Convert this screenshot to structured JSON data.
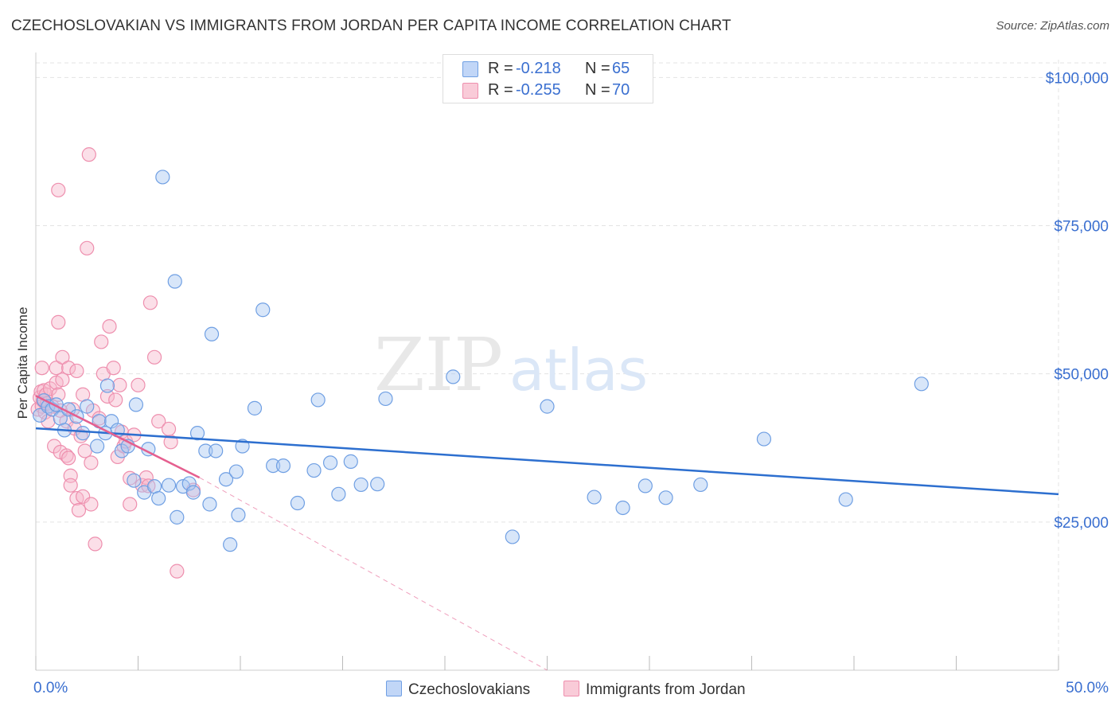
{
  "title": "CZECHOSLOVAKIAN VS IMMIGRANTS FROM JORDAN PER CAPITA INCOME CORRELATION CHART",
  "source": "Source: ZipAtlas.com",
  "watermark": {
    "zip": "ZIP",
    "atlas": "atlas"
  },
  "stats": {
    "rows": [
      {
        "r_label": "R =",
        "r_value": "-0.218",
        "n_label": "N =",
        "n_value": "65"
      },
      {
        "r_label": "R =",
        "r_value": "-0.255",
        "n_label": "N =",
        "n_value": "70"
      }
    ]
  },
  "legend": {
    "items": [
      {
        "label": "Czechoslovakians"
      },
      {
        "label": "Immigrants from Jordan"
      }
    ]
  },
  "colors": {
    "blue_fill": "#a9c7f2",
    "blue_stroke": "#6f9fe3",
    "blue_line": "#2d6fcf",
    "pink_fill": "#f7b9cc",
    "pink_stroke": "#ee8fae",
    "pink_line": "#e55f8f",
    "tick_label": "#3a6fd0",
    "grid": "#e3e3e3"
  },
  "chart_data": {
    "type": "scatter",
    "title": "CZECHOSLOVAKIAN VS IMMIGRANTS FROM JORDAN PER CAPITA INCOME CORRELATION CHART",
    "xlabel": "",
    "ylabel": "Per Capita Income",
    "xlim": [
      0,
      50
    ],
    "ylim": [
      0,
      103000
    ],
    "x_tick_labels": [
      {
        "value": 0,
        "label": "0.0%"
      },
      {
        "value": 50,
        "label": "50.0%"
      }
    ],
    "y_ticks": [
      {
        "value": 25000,
        "label": "$25,000"
      },
      {
        "value": 50000,
        "label": "$50,000"
      },
      {
        "value": 75000,
        "label": "$75,000"
      },
      {
        "value": 100000,
        "label": "$100,000"
      }
    ],
    "x_minor_ticks": [
      0,
      5,
      10,
      15,
      20,
      25,
      30,
      35,
      40,
      45,
      50
    ],
    "series": [
      {
        "name": "Czechoslovakians",
        "R": -0.218,
        "N": 65,
        "trend": {
          "x": [
            0,
            50
          ],
          "y": [
            40800,
            29700
          ]
        },
        "points": [
          {
            "x": 0.2,
            "y": 43000
          },
          {
            "x": 0.4,
            "y": 45500
          },
          {
            "x": 0.6,
            "y": 44500
          },
          {
            "x": 0.8,
            "y": 44000
          },
          {
            "x": 1.0,
            "y": 44800
          },
          {
            "x": 1.2,
            "y": 42500
          },
          {
            "x": 1.4,
            "y": 40500
          },
          {
            "x": 1.6,
            "y": 44000
          },
          {
            "x": 2.0,
            "y": 42800
          },
          {
            "x": 2.3,
            "y": 40000
          },
          {
            "x": 2.5,
            "y": 44500
          },
          {
            "x": 3.0,
            "y": 37800
          },
          {
            "x": 3.1,
            "y": 42000
          },
          {
            "x": 3.4,
            "y": 40000
          },
          {
            "x": 3.5,
            "y": 48000
          },
          {
            "x": 3.7,
            "y": 42000
          },
          {
            "x": 4.0,
            "y": 40500
          },
          {
            "x": 4.2,
            "y": 37000
          },
          {
            "x": 4.5,
            "y": 37800
          },
          {
            "x": 4.8,
            "y": 32000
          },
          {
            "x": 4.9,
            "y": 44800
          },
          {
            "x": 5.3,
            "y": 30000
          },
          {
            "x": 5.5,
            "y": 37300
          },
          {
            "x": 5.8,
            "y": 31000
          },
          {
            "x": 6.0,
            "y": 29000
          },
          {
            "x": 6.2,
            "y": 83200
          },
          {
            "x": 6.5,
            "y": 31200
          },
          {
            "x": 6.8,
            "y": 65600
          },
          {
            "x": 6.9,
            "y": 25800
          },
          {
            "x": 7.2,
            "y": 31000
          },
          {
            "x": 7.5,
            "y": 31500
          },
          {
            "x": 7.7,
            "y": 30000
          },
          {
            "x": 7.9,
            "y": 40000
          },
          {
            "x": 8.3,
            "y": 37000
          },
          {
            "x": 8.6,
            "y": 56700
          },
          {
            "x": 8.5,
            "y": 28000
          },
          {
            "x": 8.8,
            "y": 37000
          },
          {
            "x": 9.3,
            "y": 32200
          },
          {
            "x": 9.5,
            "y": 21200
          },
          {
            "x": 9.8,
            "y": 33500
          },
          {
            "x": 9.9,
            "y": 26200
          },
          {
            "x": 10.1,
            "y": 37800
          },
          {
            "x": 10.7,
            "y": 44200
          },
          {
            "x": 11.1,
            "y": 60800
          },
          {
            "x": 11.6,
            "y": 34500
          },
          {
            "x": 12.1,
            "y": 34500
          },
          {
            "x": 12.8,
            "y": 28200
          },
          {
            "x": 13.6,
            "y": 33700
          },
          {
            "x": 13.8,
            "y": 45600
          },
          {
            "x": 14.4,
            "y": 35000
          },
          {
            "x": 14.8,
            "y": 29700
          },
          {
            "x": 15.4,
            "y": 35200
          },
          {
            "x": 15.9,
            "y": 31300
          },
          {
            "x": 16.7,
            "y": 31400
          },
          {
            "x": 17.1,
            "y": 45800
          },
          {
            "x": 20.4,
            "y": 49500
          },
          {
            "x": 23.3,
            "y": 22500
          },
          {
            "x": 25.0,
            "y": 44500
          },
          {
            "x": 27.3,
            "y": 29200
          },
          {
            "x": 28.7,
            "y": 27400
          },
          {
            "x": 29.8,
            "y": 31100
          },
          {
            "x": 30.8,
            "y": 29100
          },
          {
            "x": 32.5,
            "y": 31300
          },
          {
            "x": 35.6,
            "y": 39000
          },
          {
            "x": 43.3,
            "y": 48300
          },
          {
            "x": 39.6,
            "y": 28800
          }
        ]
      },
      {
        "name": "Immigrants from Jordan",
        "R": -0.255,
        "N": 70,
        "trend": {
          "x": [
            0,
            8
          ],
          "y": [
            46300,
            32500
          ]
        },
        "trend_ext": {
          "x": [
            8,
            25
          ],
          "y": [
            32500,
            0
          ]
        },
        "points": [
          {
            "x": 0.1,
            "y": 44000
          },
          {
            "x": 0.2,
            "y": 46000
          },
          {
            "x": 0.25,
            "y": 47000
          },
          {
            "x": 0.3,
            "y": 44500
          },
          {
            "x": 0.35,
            "y": 45500
          },
          {
            "x": 0.4,
            "y": 47200
          },
          {
            "x": 0.45,
            "y": 43500
          },
          {
            "x": 0.5,
            "y": 46500
          },
          {
            "x": 0.55,
            "y": 45000
          },
          {
            "x": 0.6,
            "y": 42000
          },
          {
            "x": 0.3,
            "y": 51000
          },
          {
            "x": 0.7,
            "y": 47500
          },
          {
            "x": 0.8,
            "y": 44500
          },
          {
            "x": 0.9,
            "y": 37800
          },
          {
            "x": 1.0,
            "y": 48500
          },
          {
            "x": 1.1,
            "y": 46500
          },
          {
            "x": 1.2,
            "y": 43800
          },
          {
            "x": 1.2,
            "y": 36800
          },
          {
            "x": 1.0,
            "y": 51000
          },
          {
            "x": 1.3,
            "y": 49000
          },
          {
            "x": 1.3,
            "y": 52800
          },
          {
            "x": 1.1,
            "y": 58700
          },
          {
            "x": 1.5,
            "y": 36200
          },
          {
            "x": 1.5,
            "y": 42000
          },
          {
            "x": 1.6,
            "y": 35800
          },
          {
            "x": 1.6,
            "y": 51000
          },
          {
            "x": 1.7,
            "y": 32800
          },
          {
            "x": 1.7,
            "y": 31200
          },
          {
            "x": 1.8,
            "y": 44000
          },
          {
            "x": 1.9,
            "y": 40800
          },
          {
            "x": 2.0,
            "y": 29000
          },
          {
            "x": 2.0,
            "y": 50500
          },
          {
            "x": 2.1,
            "y": 27000
          },
          {
            "x": 2.2,
            "y": 39500
          },
          {
            "x": 2.3,
            "y": 46500
          },
          {
            "x": 2.3,
            "y": 29300
          },
          {
            "x": 2.4,
            "y": 37000
          },
          {
            "x": 2.5,
            "y": 71200
          },
          {
            "x": 2.6,
            "y": 87000
          },
          {
            "x": 2.7,
            "y": 35000
          },
          {
            "x": 2.7,
            "y": 28000
          },
          {
            "x": 2.8,
            "y": 43800
          },
          {
            "x": 2.9,
            "y": 21300
          },
          {
            "x": 1.1,
            "y": 81000
          },
          {
            "x": 3.1,
            "y": 42500
          },
          {
            "x": 3.2,
            "y": 55400
          },
          {
            "x": 3.3,
            "y": 50000
          },
          {
            "x": 3.5,
            "y": 46200
          },
          {
            "x": 3.6,
            "y": 58000
          },
          {
            "x": 3.8,
            "y": 51000
          },
          {
            "x": 3.9,
            "y": 45600
          },
          {
            "x": 4.0,
            "y": 36000
          },
          {
            "x": 4.1,
            "y": 48100
          },
          {
            "x": 4.2,
            "y": 40200
          },
          {
            "x": 4.3,
            "y": 37800
          },
          {
            "x": 4.4,
            "y": 38600
          },
          {
            "x": 4.6,
            "y": 28000
          },
          {
            "x": 4.6,
            "y": 32400
          },
          {
            "x": 4.8,
            "y": 39700
          },
          {
            "x": 5.0,
            "y": 48100
          },
          {
            "x": 5.2,
            "y": 31200
          },
          {
            "x": 5.4,
            "y": 32500
          },
          {
            "x": 5.5,
            "y": 31100
          },
          {
            "x": 5.6,
            "y": 62000
          },
          {
            "x": 5.8,
            "y": 52800
          },
          {
            "x": 6.0,
            "y": 42000
          },
          {
            "x": 6.5,
            "y": 40700
          },
          {
            "x": 6.9,
            "y": 16700
          },
          {
            "x": 7.7,
            "y": 30400
          },
          {
            "x": 6.6,
            "y": 38500
          }
        ]
      }
    ]
  }
}
